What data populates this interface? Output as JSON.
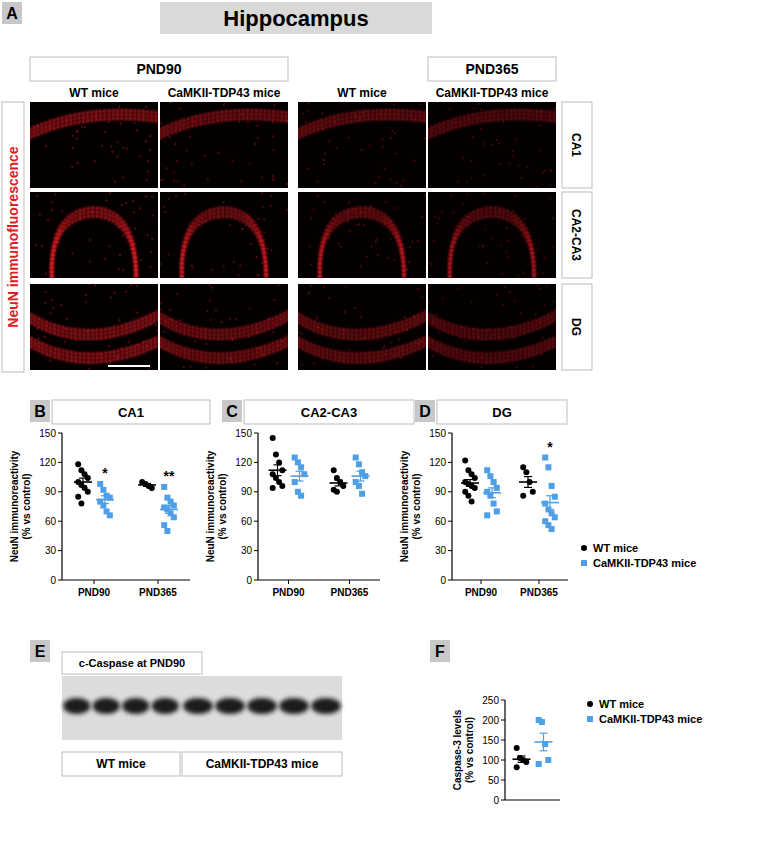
{
  "figure": {
    "panel_a": {
      "label": "A",
      "title": "Hippocampus",
      "stain": "NeuN immunofluorescence",
      "timepoints": [
        "PND90",
        "PND365"
      ],
      "groups": [
        "WT mice",
        "CaMKII-TDP43 mice"
      ],
      "regions": [
        "CA1",
        "CA2-CA3",
        "DG"
      ]
    },
    "panel_e": {
      "label": "E",
      "title": "c-Caspase at PND90",
      "groups": [
        "WT mice",
        "CaMKII-TDP43 mice"
      ],
      "lanes": [
        4,
        5
      ]
    }
  },
  "chart_data": [
    {
      "type": "dot",
      "panel": "B",
      "title": "CA1",
      "y_label": [
        "NeuN immunoreactivity",
        "(% vs control)"
      ],
      "categories": [
        "PND90",
        "PND365"
      ],
      "ylim": [
        0,
        150
      ],
      "yticks": [
        0,
        30,
        60,
        90,
        120,
        150
      ],
      "series": [
        {
          "name": "WT mice",
          "color": "#000000",
          "marker": "circle",
          "values": [
            [
              118,
              112,
              108,
              104,
              100,
              97,
              94,
              90,
              85,
              78
            ],
            [
              100,
              98,
              96,
              94
            ]
          ],
          "mean": [
            100,
            97
          ],
          "sem": [
            4,
            1.5
          ]
        },
        {
          "name": "CaMKII-TDP43 mice",
          "color": "#4f9fe6",
          "marker": "square",
          "values": [
            [
              98,
              92,
              86,
              84,
              80,
              76,
              70,
              66
            ],
            [
              95,
              84,
              80,
              76,
              74,
              72,
              68,
              64,
              56,
              50
            ]
          ],
          "mean": [
            82,
            72
          ],
          "sem": [
            4,
            4
          ],
          "significance": [
            "*",
            "**"
          ]
        }
      ]
    },
    {
      "type": "dot",
      "panel": "C",
      "title": "CA2-CA3",
      "y_label": [
        "NeuN immunoreactivity",
        "(% vs control)"
      ],
      "categories": [
        "PND90",
        "PND365"
      ],
      "ylim": [
        0,
        150
      ],
      "yticks": [
        0,
        30,
        60,
        90,
        120,
        150
      ],
      "series": [
        {
          "name": "WT mice",
          "color": "#000000",
          "marker": "circle",
          "values": [
            [
              145,
              128,
              120,
              112,
              108,
              104,
              100,
              96,
              94
            ],
            [
              112,
              104,
              100,
              96,
              92,
              90
            ]
          ],
          "mean": [
            112,
            99
          ],
          "sem": [
            5.5,
            3
          ]
        },
        {
          "name": "CaMKII-TDP43 mice",
          "color": "#4f9fe6",
          "marker": "square",
          "values": [
            [
              125,
              120,
              115,
              108,
              100,
              90,
              86
            ],
            [
              125,
              118,
              110,
              106,
              100,
              96,
              88
            ]
          ],
          "mean": [
            106,
            106
          ],
          "sem": [
            5,
            5
          ]
        }
      ]
    },
    {
      "type": "dot",
      "panel": "D",
      "title": "DG",
      "y_label": [
        "NeuN immunoreactivity",
        "(% vs control)"
      ],
      "categories": [
        "PND90",
        "PND365"
      ],
      "ylim": [
        0,
        150
      ],
      "yticks": [
        0,
        30,
        60,
        90,
        120,
        150
      ],
      "legend": "right",
      "series": [
        {
          "name": "WT mice",
          "color": "#000000",
          "marker": "circle",
          "values": [
            [
              122,
              112,
              108,
              104,
              100,
              98,
              96,
              94,
              90,
              86,
              80
            ],
            [
              115,
              110,
              100,
              90,
              86
            ]
          ],
          "mean": [
            99,
            100
          ],
          "sem": [
            3.5,
            5.5
          ]
        },
        {
          "name": "CaMKII-TDP43 mice",
          "color": "#4f9fe6",
          "marker": "square",
          "values": [
            [
              112,
              106,
              100,
              94,
              90,
              86,
              78,
              70,
              66
            ],
            [
              125,
              115,
              96,
              85,
              78,
              72,
              68,
              64,
              60,
              56,
              52
            ]
          ],
          "mean": [
            89,
            79
          ],
          "sem": [
            5,
            7
          ],
          "significance": [
            null,
            "*"
          ]
        }
      ]
    },
    {
      "type": "dot",
      "panel": "F",
      "y_label": [
        "Caspase-3 levels",
        "(% vs control)"
      ],
      "categories": [
        null
      ],
      "tick_labels": "y",
      "ylim": [
        0,
        250
      ],
      "yticks": [
        0,
        50,
        100,
        150,
        200,
        250
      ],
      "legend": "right",
      "series": [
        {
          "name": "WT mice",
          "color": "#000000",
          "marker": "circle",
          "values": [
            [
              130,
              105,
              100,
              95,
              82
            ]
          ],
          "mean": [
            102
          ],
          "sem": [
            8
          ]
        },
        {
          "name": "CaMKII-TDP43 mice",
          "color": "#4f9fe6",
          "marker": "square",
          "values": [
            [
              200,
              195,
              140,
              100,
              90
            ]
          ],
          "mean": [
            145
          ],
          "sem": [
            22
          ]
        }
      ]
    }
  ]
}
